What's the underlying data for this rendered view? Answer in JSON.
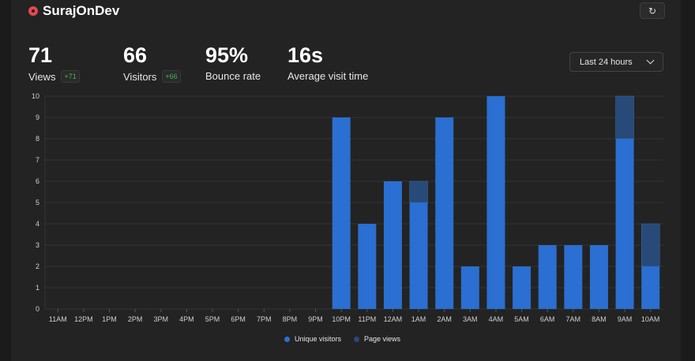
{
  "header": {
    "site_name": "SurajOnDev",
    "refresh_label": "↻"
  },
  "metrics": [
    {
      "value": "71",
      "label": "Views",
      "badge": "+71"
    },
    {
      "value": "66",
      "label": "Visitors",
      "badge": "+66"
    },
    {
      "value": "95%",
      "label": "Bounce rate",
      "badge": ""
    },
    {
      "value": "16s",
      "label": "Average visit time",
      "badge": ""
    }
  ],
  "range": {
    "selected": "Last 24 hours"
  },
  "colors": {
    "visitors": "#2a6fd1",
    "pageviews": "#274a78",
    "grid": "#333333"
  },
  "chart_data": {
    "type": "bar",
    "categories": [
      "11AM",
      "12PM",
      "1PM",
      "2PM",
      "3PM",
      "4PM",
      "5PM",
      "6PM",
      "7PM",
      "8PM",
      "9PM",
      "10PM",
      "11PM",
      "12AM",
      "1AM",
      "2AM",
      "3AM",
      "4AM",
      "5AM",
      "6AM",
      "7AM",
      "8AM",
      "9AM",
      "10AM"
    ],
    "series": [
      {
        "name": "Unique visitors",
        "values": [
          0,
          0,
          0,
          0,
          0,
          0,
          0,
          0,
          0,
          0,
          0,
          9,
          4,
          6,
          5,
          9,
          2,
          10,
          2,
          3,
          3,
          3,
          8,
          2
        ]
      },
      {
        "name": "Page views",
        "values": [
          0,
          0,
          0,
          0,
          0,
          0,
          0,
          0,
          0,
          0,
          0,
          9,
          4,
          6,
          6,
          9,
          2,
          10,
          2,
          3,
          3,
          3,
          10,
          4
        ]
      }
    ],
    "yticks": [
      "0",
      "1",
      "2",
      "3",
      "4",
      "5",
      "6",
      "7",
      "8",
      "9",
      "10"
    ],
    "ylim": [
      0,
      10
    ],
    "stacked_overlay": true,
    "grid": true,
    "legend": "bottom-center"
  }
}
